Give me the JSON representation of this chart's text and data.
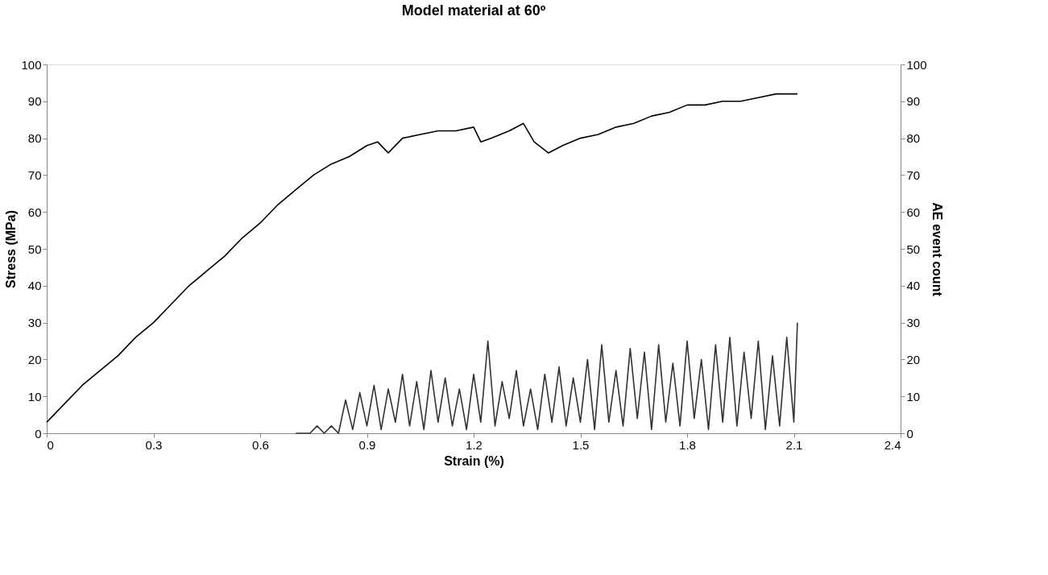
{
  "chart_data": {
    "type": "line",
    "title": "Model material at 60º",
    "xlabel": "Strain (%)",
    "ylabel": "Stress (MPa)",
    "y2label": "AE event count",
    "xlim": [
      0,
      2.4
    ],
    "xticks": [
      0,
      0.3,
      0.6,
      0.9,
      1.2,
      1.5,
      1.8,
      2.1,
      2.4
    ],
    "ylim": [
      0,
      100
    ],
    "yticks": [
      0,
      10,
      20,
      30,
      40,
      50,
      60,
      70,
      80,
      90,
      100
    ],
    "y2lim": [
      0,
      100
    ],
    "y2ticks": [
      0,
      10,
      20,
      30,
      40,
      50,
      60,
      70,
      80,
      90,
      100
    ],
    "grid": false,
    "series": [
      {
        "color": "#000000",
        "x": [
          0,
          0.02,
          0.05,
          0.1,
          0.15,
          0.2,
          0.25,
          0.3,
          0.35,
          0.4,
          0.45,
          0.5,
          0.55,
          0.6,
          0.65,
          0.7,
          0.75,
          0.8,
          0.85,
          0.9,
          0.93,
          0.96,
          1.0,
          1.05,
          1.1,
          1.15,
          1.2,
          1.22,
          1.25,
          1.3,
          1.34,
          1.37,
          1.41,
          1.45,
          1.5,
          1.55,
          1.6,
          1.65,
          1.7,
          1.75,
          1.8,
          1.85,
          1.9,
          1.95,
          2.0,
          2.05,
          2.11
        ],
        "values": [
          3,
          5,
          8,
          13,
          17,
          21,
          26,
          30,
          35,
          40,
          44,
          48,
          53,
          57,
          62,
          66,
          70,
          73,
          75,
          78,
          79,
          76,
          80,
          81,
          82,
          82,
          83,
          79,
          80,
          82,
          84,
          79,
          76,
          78,
          80,
          81,
          83,
          84,
          86,
          87,
          89,
          89,
          90,
          90,
          91,
          92,
          92
        ]
      },
      {
        "color": "#333333",
        "axis": "y2",
        "x": [
          0.7,
          0.72,
          0.74,
          0.76,
          0.78,
          0.8,
          0.82,
          0.84,
          0.86,
          0.88,
          0.9,
          0.92,
          0.94,
          0.96,
          0.98,
          1.0,
          1.02,
          1.04,
          1.06,
          1.08,
          1.1,
          1.12,
          1.14,
          1.16,
          1.18,
          1.2,
          1.22,
          1.24,
          1.26,
          1.28,
          1.3,
          1.32,
          1.34,
          1.36,
          1.38,
          1.4,
          1.42,
          1.44,
          1.46,
          1.48,
          1.5,
          1.52,
          1.54,
          1.56,
          1.58,
          1.6,
          1.62,
          1.64,
          1.66,
          1.68,
          1.7,
          1.72,
          1.74,
          1.76,
          1.78,
          1.8,
          1.82,
          1.84,
          1.86,
          1.88,
          1.9,
          1.92,
          1.94,
          1.96,
          1.98,
          2.0,
          2.02,
          2.04,
          2.06,
          2.08,
          2.1,
          2.11
        ],
        "values": [
          0,
          0,
          0,
          2,
          0,
          2,
          0,
          9,
          1,
          11,
          2,
          13,
          1,
          12,
          3,
          16,
          2,
          14,
          1,
          17,
          3,
          15,
          2,
          12,
          1,
          16,
          3,
          25,
          2,
          14,
          4,
          17,
          2,
          12,
          1,
          16,
          3,
          18,
          2,
          15,
          3,
          20,
          1,
          24,
          3,
          17,
          2,
          23,
          4,
          22,
          1,
          24,
          3,
          19,
          2,
          25,
          4,
          20,
          1,
          24,
          3,
          26,
          2,
          22,
          4,
          25,
          1,
          21,
          2,
          26,
          3,
          30
        ]
      }
    ]
  }
}
